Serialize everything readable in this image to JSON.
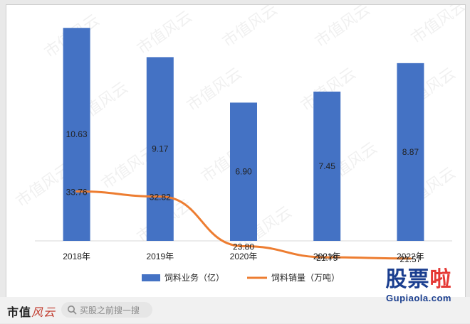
{
  "chart_data": {
    "type": "bar+line",
    "categories": [
      "2018年",
      "2019年",
      "2020年",
      "2021年",
      "2022年"
    ],
    "series": [
      {
        "name": "饲料业务（亿）",
        "kind": "bar",
        "values": [
          10.63,
          9.17,
          6.9,
          7.45,
          8.87
        ],
        "labels": [
          "10.63",
          "9.17",
          "6.90",
          "7.45",
          "8.87"
        ],
        "color": "#4472c4"
      },
      {
        "name": "饲料销量（万吨）",
        "kind": "line",
        "values": [
          33.76,
          32.82,
          23.8,
          21.79,
          21.57
        ],
        "labels": [
          "33.76",
          "32.82",
          "23.80",
          "21.79",
          "21.57"
        ],
        "color": "#ed7d31"
      }
    ],
    "legend_position": "bottom",
    "grid": false
  },
  "watermark": {
    "text": "市值风云"
  },
  "footer": {
    "logo_text": "市值",
    "logo_script": "风云",
    "search_placeholder": "买股之前搜一搜",
    "brand_text": "股票",
    "brand_accent": "啦",
    "brand_url": "Gupiaola.com"
  }
}
